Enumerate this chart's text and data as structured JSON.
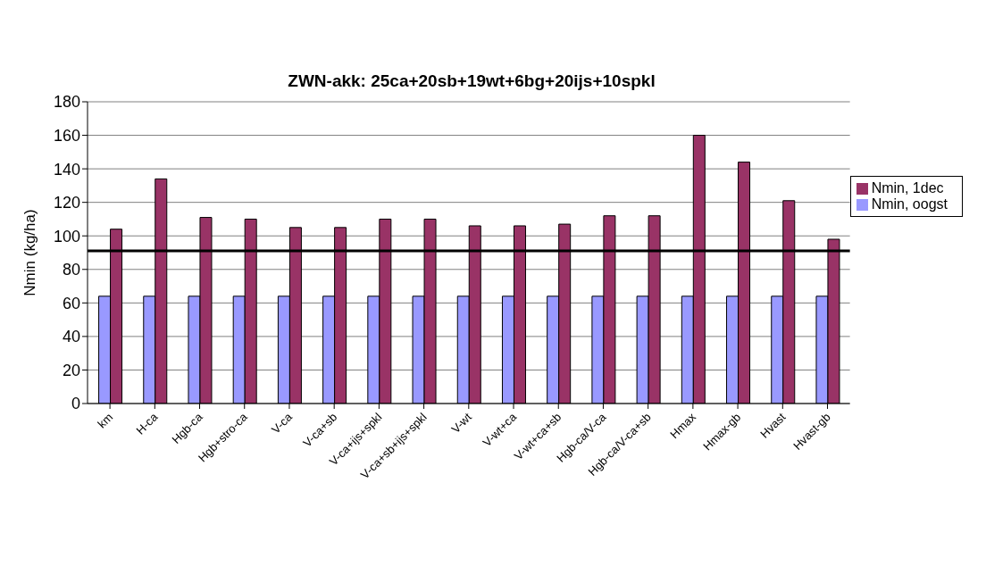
{
  "chart_data": {
    "type": "bar",
    "title": "ZWN-akk: 25ca+20sb+19wt+6bg+20ijs+10spkl",
    "ylabel": "Nmin (kg/ha)",
    "categories": [
      "km",
      "H-ca",
      "Hgb-ca",
      "Hgb+stro-ca",
      "V-ca",
      "V-ca+sb",
      "V-ca+ijs+spkl",
      "V-ca+sb+ijs+spkl",
      "V-wt",
      "V-wt+ca",
      "V-wt+ca+sb",
      "Hgb-ca/V-ca",
      "Hgb-ca/V-ca+sb",
      "Hmax",
      "Hmax-gb",
      "Hvast",
      "Hvast-gb"
    ],
    "series": [
      {
        "name": "Nmin, oogst",
        "color": "#9999ff",
        "values": [
          64,
          64,
          64,
          64,
          64,
          64,
          64,
          64,
          64,
          64,
          64,
          64,
          64,
          64,
          64,
          64,
          64
        ]
      },
      {
        "name": "Nmin, 1dec",
        "color": "#993366",
        "values": [
          104,
          134,
          111,
          110,
          105,
          105,
          110,
          110,
          106,
          106,
          107,
          112,
          112,
          160,
          144,
          121,
          98
        ]
      }
    ],
    "ylim": [
      0,
      180
    ],
    "yticks": [
      0,
      20,
      40,
      60,
      80,
      100,
      120,
      140,
      160,
      180
    ],
    "grid": "y",
    "legend": "right",
    "ref_lines": [
      {
        "axis": "y",
        "value": 91,
        "color": "#000000"
      }
    ]
  }
}
